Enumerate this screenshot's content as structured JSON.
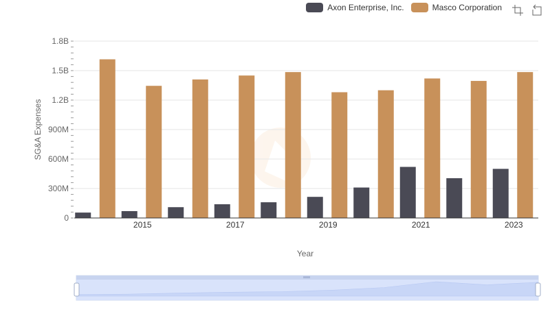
{
  "legend": {
    "items": [
      {
        "name": "Axon Enterprise, Inc.",
        "color": "#4a4a55"
      },
      {
        "name": "Masco Corporation",
        "color": "#c8915a"
      }
    ]
  },
  "toolbox": {
    "icons": [
      "zoom-icon",
      "restore-icon"
    ]
  },
  "chart_data": {
    "type": "bar",
    "xlabel": "Year",
    "ylabel": "SG&A Expenses",
    "categories": [
      "2014",
      "2015",
      "2016",
      "2017",
      "2018",
      "2019",
      "2020",
      "2021",
      "2022",
      "2023"
    ],
    "x_tick_labels": [
      "2015",
      "2017",
      "2019",
      "2021",
      "2023"
    ],
    "y_ticks": [
      0,
      300000000,
      600000000,
      900000000,
      1200000000,
      1500000000,
      1800000000
    ],
    "y_tick_labels": [
      "0",
      "300M",
      "600M",
      "900M",
      "1.2B",
      "1.5B",
      "1.8B"
    ],
    "ylim": [
      0,
      1800000000
    ],
    "grid": true,
    "legend_position": "top-right",
    "series": [
      {
        "name": "Axon Enterprise, Inc.",
        "color": "#4a4a55",
        "values": [
          55000000,
          70000000,
          110000000,
          140000000,
          160000000,
          215000000,
          310000000,
          520000000,
          405000000,
          500000000
        ]
      },
      {
        "name": "Masco Corporation",
        "color": "#c8915a",
        "values": [
          1615000000,
          1345000000,
          1410000000,
          1450000000,
          1485000000,
          1280000000,
          1300000000,
          1420000000,
          1395000000,
          1485000000
        ]
      }
    ]
  }
}
